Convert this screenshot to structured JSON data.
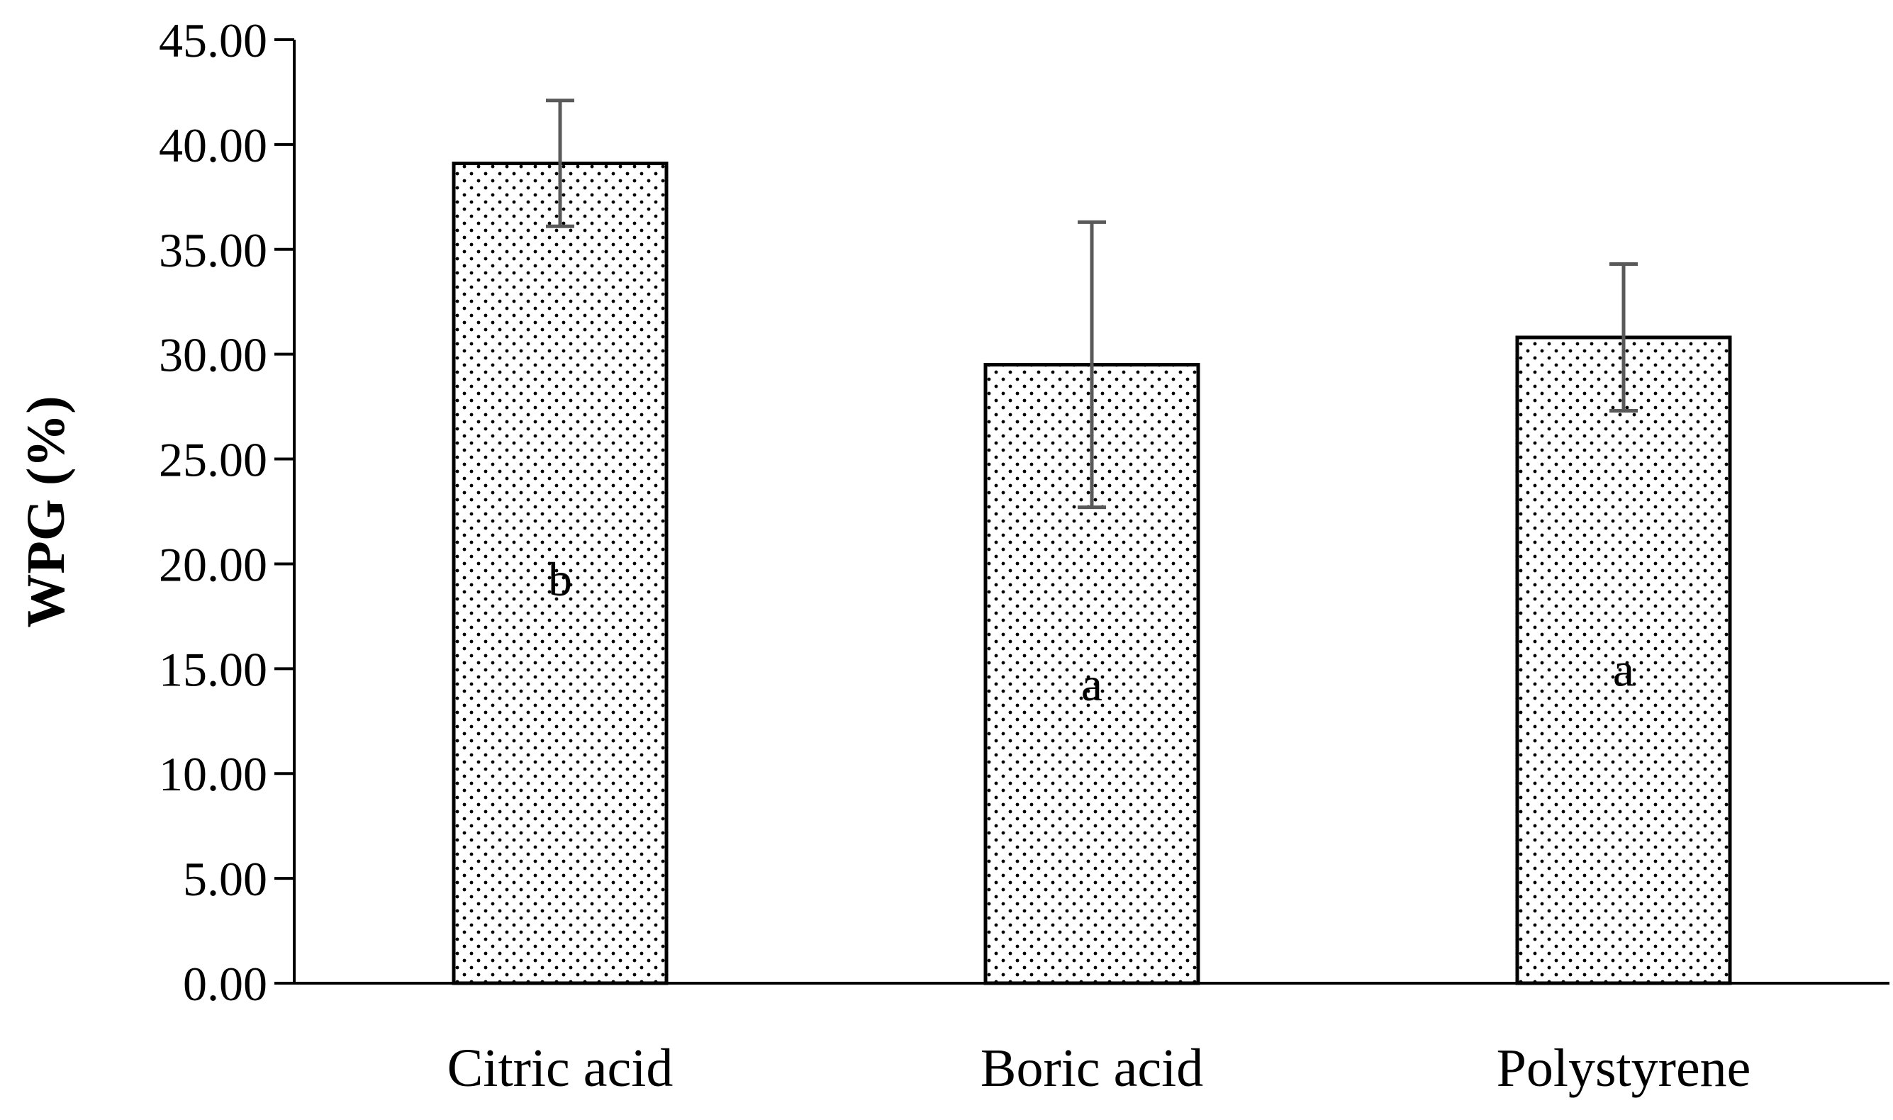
{
  "chart_data": {
    "type": "bar",
    "title": "",
    "xlabel": "",
    "ylabel": "WPG (%)",
    "ylim": [
      0,
      45
    ],
    "yticks": [
      "0.00",
      "5.00",
      "10.00",
      "15.00",
      "20.00",
      "25.00",
      "30.00",
      "35.00",
      "40.00",
      "45.00"
    ],
    "categories": [
      "Citric acid",
      "Boric acid",
      "Polystyrene"
    ],
    "values": [
      39.1,
      29.5,
      30.8
    ],
    "error_low": [
      36.1,
      22.7,
      27.3
    ],
    "error_high": [
      42.1,
      36.3,
      34.3
    ],
    "significance_letters": [
      "b",
      "a",
      "a"
    ],
    "letter_values": [
      19.3,
      14.3,
      15.0
    ],
    "grid": false,
    "legend": "none",
    "bar_fill": "dotted pattern",
    "colors": {
      "bar_border": "#000000",
      "dots": "#000000",
      "error_bar": "#595959",
      "axis": "#000000"
    }
  }
}
